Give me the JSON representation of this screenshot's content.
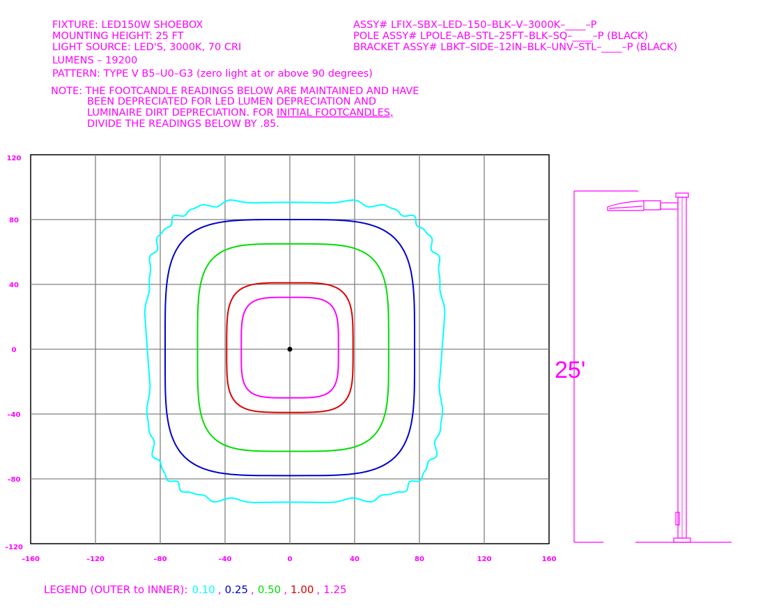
{
  "header": {
    "left_lines": [
      "FIXTURE: LED150W SHOEBOX",
      "MOUNTING HEIGHT: 25 FT",
      "LIGHT SOURCE: LED'S, 3000K, 70 CRI",
      "LUMENS – 19200"
    ],
    "pattern": "PATTERN: TYPE V B5–U0–G3 (zero light at or above 90 degrees)",
    "note_lines": [
      "NOTE: THE FOOTCANDLE READINGS BELOW ARE MAINTAINED AND HAVE",
      "BEEN DEPRECIATED FOR LED LUMEN DEPRECIATION AND",
      "LUMINAIRE DIRT DEPRECIATION. FOR ",
      "DIVIDE THE READINGS BELOW BY .85."
    ],
    "note_underlined": "INITIAL FOOTCANDLES,",
    "right_lines": [
      "ASSY# LFIX–SBX–LED–150–BLK–V–3000K–____–P",
      "POLE ASSY# LPOLE–AB–STL–25FT–BLK–SQ–____–P (BLACK)",
      "BRACKET ASSY# LBKT–SIDE–12IN–BLK–UNV–STL–____–P (BLACK)"
    ]
  },
  "chart_data": {
    "type": "contour",
    "xlim": [
      -160,
      160
    ],
    "ylim": [
      -120,
      120
    ],
    "x_ticks": [
      -160,
      -120,
      -80,
      -40,
      0,
      40,
      80,
      120,
      160
    ],
    "y_ticks": [
      120,
      80,
      40,
      0,
      -40,
      -80,
      -120
    ],
    "x_tick_labels": [
      "–160",
      "–120",
      "–80",
      "–40",
      "0",
      "40",
      "80",
      "120",
      "160"
    ],
    "y_tick_labels": [
      "120",
      "80",
      "40",
      "0",
      "–40",
      "–80",
      "–120"
    ],
    "grid": true,
    "contours": [
      {
        "value": "0.10",
        "color": "#00ffff",
        "right": 94,
        "left": -88,
        "top": 91,
        "bottom": -94
      },
      {
        "value": "0.25",
        "color": "#0000cc",
        "right": 77,
        "left": -77,
        "top": 80,
        "bottom": -78
      },
      {
        "value": "0.50",
        "color": "#00dd00",
        "right": 61,
        "left": -57,
        "top": 65,
        "bottom": -63
      },
      {
        "value": "1.00",
        "color": "#dd0000",
        "right": 39,
        "left": -39,
        "top": 41,
        "bottom": -39
      },
      {
        "value": "1.25",
        "color": "#ff00ff",
        "right": 30,
        "left": -30,
        "top": 32,
        "bottom": -30
      }
    ]
  },
  "pole": {
    "height_label": "25'"
  },
  "legend": {
    "prefix": "LEGEND (OUTER to INNER):",
    "separator": ","
  }
}
